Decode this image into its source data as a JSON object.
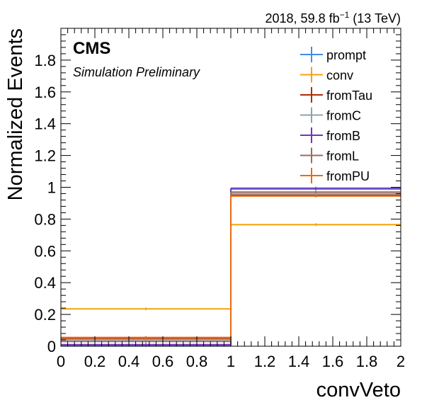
{
  "header": {
    "experiment": "CMS",
    "status": "Simulation Preliminary",
    "lumi_prefix": "2018, 59.8 fb",
    "lumi_exp": "−1",
    "lumi_suffix": " (13 TeV)"
  },
  "chart_data": {
    "type": "histogram",
    "title": "",
    "xlabel": "convVeto",
    "ylabel": "Normalized Events",
    "xlim": [
      0,
      2
    ],
    "ylim": [
      0,
      2
    ],
    "bin_edges": [
      0,
      1,
      2
    ],
    "x_ticks": [
      "0",
      "0.2",
      "0.4",
      "0.6",
      "0.8",
      "1",
      "1.2",
      "1.4",
      "1.6",
      "1.8",
      "2"
    ],
    "x_tick_values": [
      0,
      0.2,
      0.4,
      0.6,
      0.8,
      1,
      1.2,
      1.4,
      1.6,
      1.8,
      2
    ],
    "y_ticks": [
      "0",
      "0.2",
      "0.4",
      "0.6",
      "0.8",
      "1",
      "1.2",
      "1.4",
      "1.6",
      "1.8"
    ],
    "y_tick_values": [
      0,
      0.2,
      0.4,
      0.6,
      0.8,
      1,
      1.2,
      1.4,
      1.6,
      1.8
    ],
    "grid": false,
    "legend_position": "top-right",
    "series": [
      {
        "name": "prompt",
        "color": "#3f8fe0",
        "values": [
          0.005,
          0.995
        ]
      },
      {
        "name": "conv",
        "color": "#f4a30d",
        "values": [
          0.235,
          0.765
        ]
      },
      {
        "name": "fromTau",
        "color": "#b02a06",
        "values": [
          0.05,
          0.95
        ]
      },
      {
        "name": "fromC",
        "color": "#8fa3a8",
        "values": [
          0.04,
          0.96
        ]
      },
      {
        "name": "fromB",
        "color": "#7b2fbe",
        "values": [
          0.01,
          0.99
        ]
      },
      {
        "name": "fromL",
        "color": "#9c6b5c",
        "values": [
          0.03,
          0.97
        ]
      },
      {
        "name": "fromPU",
        "color": "#ea6a10",
        "values": [
          0.055,
          0.945
        ]
      }
    ]
  }
}
